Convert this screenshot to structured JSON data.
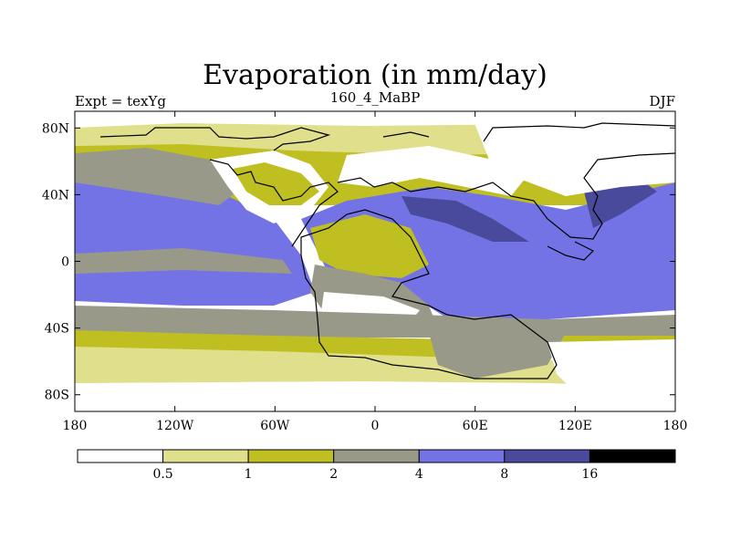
{
  "header": {
    "title": "Evaporation (in mm/day)",
    "left_label": "Expt = texYg",
    "center_label": "160_4_MaBP",
    "right_label": "DJF"
  },
  "map": {
    "lon_range": [
      -180,
      180
    ],
    "lat_range": [
      -90,
      90
    ],
    "lat_ticks": [
      {
        "value": 80,
        "label": "80N"
      },
      {
        "value": 40,
        "label": "40N"
      },
      {
        "value": 0,
        "label": "0"
      },
      {
        "value": -40,
        "label": "40S"
      },
      {
        "value": -80,
        "label": "80S"
      }
    ],
    "lon_ticks": [
      {
        "value": -180,
        "label": "180"
      },
      {
        "value": -120,
        "label": "120W"
      },
      {
        "value": -60,
        "label": "60W"
      },
      {
        "value": 0,
        "label": "0"
      },
      {
        "value": 60,
        "label": "60E"
      },
      {
        "value": 120,
        "label": "120E"
      },
      {
        "value": 180,
        "label": "180"
      }
    ]
  },
  "colorbar": {
    "colors": [
      "#ffffff",
      "#e0e08c",
      "#bfbf21",
      "#99998a",
      "#7373e6",
      "#4a4a9c",
      "#000000"
    ],
    "labels": [
      "0.5",
      "1",
      "2",
      "4",
      "8",
      "16"
    ]
  }
}
